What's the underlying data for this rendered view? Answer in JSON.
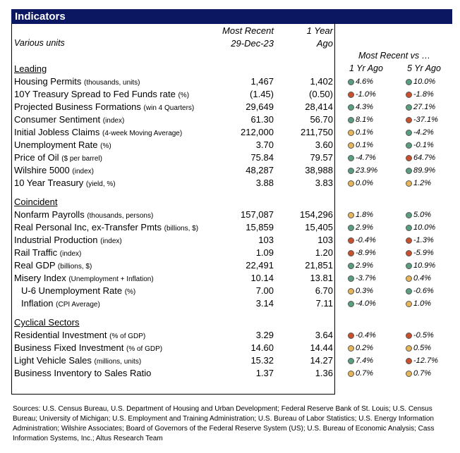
{
  "title": "Indicators",
  "header": {
    "units": "Various units",
    "recent_line1": "Most Recent",
    "recent_line2": "29-Dec-23",
    "ago_line1": "1 Year",
    "ago_line2": "Ago",
    "compare": "Most Recent vs …",
    "yr1": "1 Yr Ago",
    "yr5": "5 Yr Ago"
  },
  "sections": [
    {
      "name": "Leading",
      "rows": [
        {
          "label": "Housing Permits",
          "unit": "(thousands, units)",
          "recent": "1,467",
          "ago": "1,402",
          "yr1": "4.6%",
          "yr1_color": "green",
          "yr5": "10.0%",
          "yr5_color": "green"
        },
        {
          "label": "10Y Treasury Spread to Fed Funds rate",
          "unit": "(%)",
          "recent": "(1.45)",
          "ago": "(0.50)",
          "yr1": "-1.0%",
          "yr1_color": "red",
          "yr5": "-1.8%",
          "yr5_color": "red"
        },
        {
          "label": "Projected Business Formations",
          "unit": "(win 4 Quarters)",
          "recent": "29,649",
          "ago": "28,414",
          "yr1": "4.3%",
          "yr1_color": "green",
          "yr5": "27.1%",
          "yr5_color": "green"
        },
        {
          "label": "Consumer Sentiment",
          "unit": "(index)",
          "recent": "61.30",
          "ago": "56.70",
          "yr1": "8.1%",
          "yr1_color": "green",
          "yr5": "-37.1%",
          "yr5_color": "red"
        },
        {
          "label": "Initial Jobless Claims",
          "unit": "(4-week Moving Average)",
          "recent": "212,000",
          "ago": "211,750",
          "yr1": "0.1%",
          "yr1_color": "yellow",
          "yr5": "-4.2%",
          "yr5_color": "green"
        },
        {
          "label": "Unemployment Rate",
          "unit": "(%)",
          "recent": "3.70",
          "ago": "3.60",
          "yr1": "0.1%",
          "yr1_color": "yellow",
          "yr5": "-0.1%",
          "yr5_color": "green"
        },
        {
          "label": "Price of Oil",
          "unit": "($ per barrel)",
          "recent": "75.84",
          "ago": "79.57",
          "yr1": "-4.7%",
          "yr1_color": "green",
          "yr5": "64.7%",
          "yr5_color": "red"
        },
        {
          "label": "Wilshire 5000",
          "unit": "(index)",
          "recent": "48,287",
          "ago": "38,988",
          "yr1": "23.9%",
          "yr1_color": "green",
          "yr5": "89.9%",
          "yr5_color": "green"
        },
        {
          "label": "10 Year Treasury",
          "unit": "(yield, %)",
          "recent": "3.88",
          "ago": "3.83",
          "yr1": "0.0%",
          "yr1_color": "yellow",
          "yr5": "1.2%",
          "yr5_color": "yellow"
        }
      ]
    },
    {
      "name": "Coincident",
      "rows": [
        {
          "label": "Nonfarm Payrolls",
          "unit": "(thousands, persons)",
          "recent": "157,087",
          "ago": "154,296",
          "yr1": "1.8%",
          "yr1_color": "yellow",
          "yr5": "5.0%",
          "yr5_color": "green"
        },
        {
          "label": "Real Personal Inc, ex-Transfer Pmts",
          "unit": "(billions, $)",
          "recent": "15,859",
          "ago": "15,405",
          "yr1": "2.9%",
          "yr1_color": "green",
          "yr5": "10.0%",
          "yr5_color": "green"
        },
        {
          "label": "Industrial Production",
          "unit": "(index)",
          "recent": "103",
          "ago": "103",
          "yr1": "-0.4%",
          "yr1_color": "red",
          "yr5": "-1.3%",
          "yr5_color": "red"
        },
        {
          "label": "Rail Traffic",
          "unit": "(index)",
          "recent": "1.09",
          "ago": "1.20",
          "yr1": "-8.9%",
          "yr1_color": "red",
          "yr5": "-5.9%",
          "yr5_color": "red"
        },
        {
          "label": "Real GDP",
          "unit": "(billions, $)",
          "recent": "22,491",
          "ago": "21,851",
          "yr1": "2.9%",
          "yr1_color": "green",
          "yr5": "10.9%",
          "yr5_color": "green"
        },
        {
          "label": "Misery Index",
          "unit": "(Unemployment + Inflation)",
          "recent": "10.14",
          "ago": "13.81",
          "yr1": "-3.7%",
          "yr1_color": "green",
          "yr5": "0.4%",
          "yr5_color": "yellow"
        },
        {
          "label": "U-6 Unemployment Rate",
          "unit": "(%)",
          "indent": true,
          "recent": "7.00",
          "ago": "6.70",
          "yr1": "0.3%",
          "yr1_color": "yellow",
          "yr5": "-0.6%",
          "yr5_color": "green"
        },
        {
          "label": "Inflation",
          "unit": "(CPI Average)",
          "indent": true,
          "recent": "3.14",
          "ago": "7.11",
          "yr1": "-4.0%",
          "yr1_color": "green",
          "yr5": "1.0%",
          "yr5_color": "yellow"
        }
      ]
    },
    {
      "name": "Cyclical Sectors",
      "rows": [
        {
          "label": "Residential Investment",
          "unit": "(% of GDP)",
          "recent": "3.29",
          "ago": "3.64",
          "yr1": "-0.4%",
          "yr1_color": "red",
          "yr5": "-0.5%",
          "yr5_color": "red"
        },
        {
          "label": "Business Fixed Investment",
          "unit": "(% of GDP)",
          "recent": "14.60",
          "ago": "14.44",
          "yr1": "0.2%",
          "yr1_color": "yellow",
          "yr5": "0.5%",
          "yr5_color": "yellow"
        },
        {
          "label": "Light Vehicle Sales",
          "unit": "(millions, units)",
          "recent": "15.32",
          "ago": "14.27",
          "yr1": "7.4%",
          "yr1_color": "green",
          "yr5": "-12.7%",
          "yr5_color": "red"
        },
        {
          "label": "Business Inventory to Sales Ratio",
          "recent": "1.37",
          "ago": "1.36",
          "yr1": "0.7%",
          "yr1_color": "yellow",
          "yr5": "0.7%",
          "yr5_color": "yellow"
        }
      ]
    }
  ],
  "sources": "Sources: U.S. Census Bureau, U.S. Department of Housing and Urban Development; Federal Reserve Bank of St. Louis; U.S. Census Bureau; University of Michigan; U.S. Employment and Training Administration; U.S. Bureau of Labor Statistics; U.S. Energy Information Administration; Wilshire Associates; Board of Governors of the Federal Reserve System (US); U.S. Bureau of Economic Analysis; Cass Information Systems, Inc.; Altus Research Team"
}
